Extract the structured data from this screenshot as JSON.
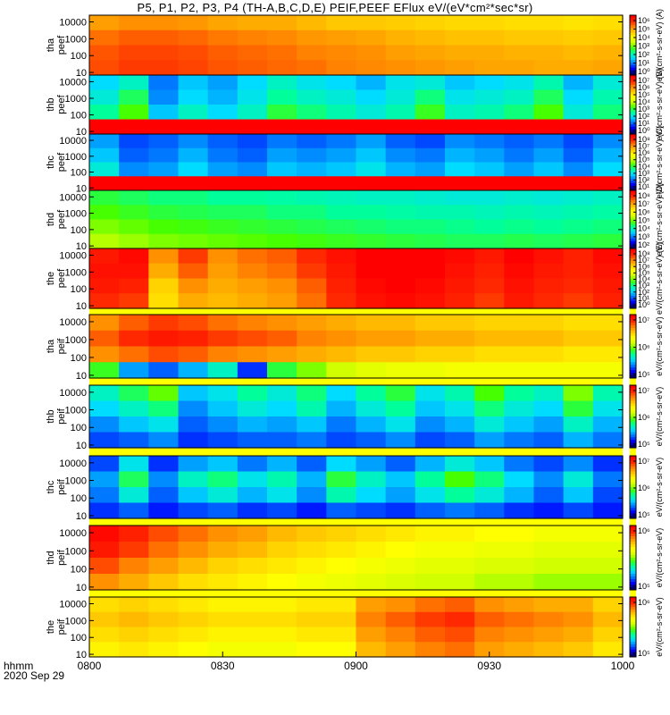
{
  "title": "P5, P1, P2, P3, P4 (TH-A,B,C,D,E) PEIF,PEEF EFlux eV/(eV*cm²*sec*sr)",
  "footer": {
    "row1": "hhmm",
    "row2": "2020 Sep 29"
  },
  "colors": {
    "frame": "#000000",
    "separator": "#ffff00"
  },
  "chart_data": {
    "type": "heatmap",
    "x_ticks": [
      "0800",
      "0830",
      "0900",
      "0930",
      "1000"
    ],
    "xlim": [
      "0800",
      "1000"
    ],
    "n_time_bins": 18,
    "y_scale": "log",
    "ylim": [
      7,
      25000
    ],
    "y_ticks": [
      "10",
      "100",
      "1000",
      "10000"
    ],
    "colorscale": [
      "#000066",
      "#0000ff",
      "#0078ff",
      "#00dcff",
      "#00ff9a",
      "#46ff00",
      "#d2ff00",
      "#ffff00",
      "#ffc800",
      "#ff8200",
      "#ff2800",
      "#ff0000"
    ],
    "panels": [
      {
        "name": "tha peef",
        "label_top": "tha",
        "label_bottom": "peef",
        "colorbar_ticks": [
          "10⁶",
          "10⁵",
          "10⁴",
          "10³",
          "10²",
          "10¹",
          "10⁰"
        ],
        "colorbar_label": "eV/(cm²-s-sr-eV) (A)",
        "levels": [
          [
            8.6,
            8.8,
            8.8,
            8.7,
            8.5,
            8.4,
            8.4,
            8.2,
            8.0,
            8.0,
            7.9,
            7.8,
            7.7,
            7.7,
            7.6,
            7.6,
            7.5,
            7.6
          ],
          [
            9.2,
            9.4,
            9.4,
            9.3,
            9.1,
            9.0,
            8.9,
            8.7,
            8.6,
            8.5,
            8.3,
            8.2,
            8.1,
            8.1,
            8.0,
            8.0,
            7.9,
            8.0
          ],
          [
            9.5,
            9.7,
            9.7,
            9.6,
            9.4,
            9.3,
            9.2,
            9.0,
            8.9,
            8.8,
            8.6,
            8.5,
            8.4,
            8.4,
            8.3,
            8.3,
            8.2,
            8.3
          ],
          [
            9.6,
            9.8,
            9.8,
            9.7,
            9.5,
            9.4,
            9.3,
            9.2,
            9.0,
            8.9,
            8.8,
            8.7,
            8.6,
            8.5,
            8.5,
            8.4,
            8.4,
            8.5
          ]
        ]
      },
      {
        "name": "thb peef",
        "label_top": "thb",
        "label_bottom": "peef",
        "colorbar_ticks": [
          "10⁷",
          "10⁶",
          "10⁵",
          "10⁴",
          "10³",
          "10²",
          "10¹",
          "10⁰"
        ],
        "colorbar_label": "eV/(cm²-s-sr-eV) (B)",
        "levels": [
          [
            3.0,
            3.6,
            2.0,
            2.8,
            2.4,
            3.0,
            3.6,
            3.2,
            3.0,
            2.6,
            3.2,
            3.4,
            2.8,
            3.0,
            3.2,
            3.8,
            2.6,
            3.4
          ],
          [
            3.4,
            4.4,
            2.2,
            3.0,
            2.6,
            3.2,
            4.0,
            3.6,
            3.4,
            3.0,
            3.4,
            4.2,
            3.2,
            3.4,
            3.6,
            4.4,
            3.0,
            3.8
          ],
          [
            4.0,
            5.0,
            2.8,
            3.6,
            3.0,
            3.6,
            4.6,
            4.2,
            3.8,
            3.4,
            3.8,
            4.8,
            3.6,
            3.8,
            4.2,
            5.0,
            3.4,
            4.2
          ],
          [
            11.5,
            11.6,
            11.5,
            11.6,
            11.5,
            11.5,
            11.6,
            11.5,
            11.6,
            11.5,
            11.5,
            11.6,
            11.5,
            11.5,
            11.6,
            11.5,
            11.5,
            11.6
          ]
        ]
      },
      {
        "name": "thc peef",
        "label_top": "thc",
        "label_bottom": "peef",
        "colorbar_ticks": [
          "10⁸",
          "10⁷",
          "10⁶",
          "10⁵",
          "10⁴",
          "10³",
          "10²",
          "10¹"
        ],
        "colorbar_label": "eV/(cm²-s-sr-eV) (C)",
        "levels": [
          [
            2.4,
            1.6,
            1.8,
            2.2,
            1.8,
            1.6,
            2.0,
            1.8,
            2.0,
            2.4,
            1.8,
            1.6,
            2.2,
            2.0,
            1.8,
            2.0,
            1.6,
            2.2
          ],
          [
            2.8,
            1.8,
            2.0,
            2.6,
            2.0,
            1.8,
            2.4,
            2.2,
            2.4,
            2.8,
            2.2,
            2.0,
            2.6,
            2.4,
            2.0,
            2.4,
            1.8,
            2.6
          ],
          [
            3.4,
            2.2,
            2.4,
            3.0,
            2.4,
            2.2,
            2.8,
            2.6,
            2.8,
            3.2,
            2.6,
            2.4,
            3.0,
            2.8,
            2.4,
            2.8,
            2.2,
            3.0
          ],
          [
            11.5,
            11.6,
            11.5,
            11.6,
            11.5,
            11.5,
            11.6,
            11.5,
            11.6,
            11.5,
            11.5,
            11.6,
            11.5,
            11.5,
            11.6,
            11.5,
            11.5,
            11.6
          ]
        ]
      },
      {
        "name": "thd peef",
        "label_top": "thd",
        "label_bottom": "peef",
        "colorbar_ticks": [
          "10⁸",
          "10⁷",
          "10⁶",
          "10⁵",
          "10⁴",
          "10³",
          "10²"
        ],
        "colorbar_label": "eV/(cm²-s-sr-eV) (D)",
        "levels": [
          [
            4.6,
            4.4,
            4.2,
            4.2,
            4.0,
            4.0,
            3.9,
            3.8,
            3.7,
            3.6,
            3.6,
            3.5,
            3.4,
            3.4,
            3.5,
            3.4,
            3.5,
            3.6
          ],
          [
            5.0,
            4.8,
            4.6,
            4.5,
            4.4,
            4.4,
            4.2,
            4.2,
            4.0,
            4.0,
            3.9,
            3.8,
            3.8,
            3.7,
            3.8,
            3.7,
            3.8,
            3.9
          ],
          [
            5.4,
            5.2,
            5.0,
            4.9,
            4.8,
            4.7,
            4.6,
            4.5,
            4.4,
            4.3,
            4.2,
            4.2,
            4.1,
            4.0,
            4.1,
            4.0,
            4.1,
            4.2
          ],
          [
            5.8,
            5.6,
            5.4,
            5.3,
            5.2,
            5.1,
            5.0,
            4.9,
            4.8,
            4.7,
            4.6,
            4.5,
            4.4,
            4.4,
            4.5,
            4.4,
            4.5,
            4.6
          ]
        ]
      },
      {
        "name": "the peef",
        "label_top": "the",
        "label_bottom": "peef",
        "colorbar_ticks": [
          "10⁸",
          "10⁷",
          "10⁶",
          "10⁵",
          "10⁴",
          "10³",
          "10²",
          "10¹",
          "10⁰"
        ],
        "colorbar_label": "eV/(cm²-s-sr-eV) (E)",
        "levels": [
          [
            10.4,
            10.8,
            8.8,
            9.8,
            8.8,
            9.2,
            9.4,
            10.0,
            10.6,
            11.0,
            11.2,
            11.1,
            10.8,
            10.4,
            11.0,
            10.6,
            10.2,
            10.8
          ],
          [
            10.6,
            10.6,
            8.4,
            9.4,
            8.6,
            9.0,
            9.2,
            9.8,
            10.4,
            11.0,
            11.2,
            11.0,
            10.6,
            10.2,
            10.8,
            10.4,
            10.2,
            10.6
          ],
          [
            10.4,
            10.2,
            7.8,
            8.8,
            8.4,
            8.6,
            8.8,
            9.4,
            10.2,
            10.8,
            11.0,
            10.8,
            10.4,
            10.0,
            10.6,
            10.2,
            10.0,
            10.4
          ],
          [
            10.0,
            9.8,
            7.6,
            8.4,
            8.2,
            8.4,
            8.6,
            9.2,
            10.0,
            10.6,
            10.8,
            10.6,
            10.2,
            9.8,
            10.4,
            10.0,
            9.8,
            10.2
          ]
        ]
      },
      {
        "name": "tha peif",
        "label_top": "tha",
        "label_bottom": "peif",
        "colorbar_ticks": [
          "10⁷",
          "10⁶",
          "10⁵"
        ],
        "colorbar_label": "eV/(cm²-s-sr-eV)",
        "levels": [
          [
            8.8,
            9.4,
            9.8,
            9.6,
            9.2,
            9.0,
            8.8,
            8.6,
            8.4,
            8.2,
            8.2,
            8.0,
            8.0,
            7.8,
            7.8,
            7.8,
            7.6,
            7.6
          ],
          [
            9.4,
            10.0,
            10.4,
            10.2,
            9.8,
            9.6,
            9.4,
            9.0,
            8.8,
            8.6,
            8.6,
            8.4,
            8.4,
            8.2,
            8.2,
            8.2,
            8.0,
            8.0
          ],
          [
            8.8,
            9.2,
            9.6,
            9.4,
            9.0,
            8.8,
            8.6,
            8.4,
            8.2,
            8.0,
            8.0,
            7.8,
            7.8,
            7.6,
            7.6,
            7.6,
            7.4,
            7.4
          ],
          [
            4.8,
            2.4,
            1.8,
            2.6,
            3.6,
            1.4,
            4.6,
            5.4,
            6.0,
            6.4,
            6.6,
            6.6,
            6.8,
            6.8,
            6.8,
            6.8,
            6.8,
            6.8
          ]
        ]
      },
      {
        "name": "thb peif",
        "label_top": "thb",
        "label_bottom": "peif",
        "colorbar_ticks": [
          "10⁷",
          "10⁶",
          "10⁵"
        ],
        "colorbar_label": "eV/(cm²-s-sr-eV)",
        "levels": [
          [
            3.6,
            4.4,
            5.2,
            2.8,
            3.2,
            4.0,
            3.4,
            4.2,
            3.0,
            4.0,
            4.6,
            3.2,
            3.8,
            5.0,
            4.0,
            3.6,
            5.4,
            3.8
          ],
          [
            3.0,
            3.6,
            4.2,
            2.2,
            2.8,
            3.4,
            3.0,
            3.8,
            2.6,
            3.4,
            4.0,
            2.8,
            3.2,
            4.2,
            3.4,
            3.0,
            4.6,
            3.2
          ],
          [
            2.2,
            2.8,
            3.2,
            1.8,
            2.2,
            2.6,
            2.4,
            2.8,
            2.0,
            2.6,
            3.2,
            2.2,
            2.6,
            3.4,
            2.8,
            2.4,
            3.6,
            2.6
          ],
          [
            1.6,
            1.8,
            2.2,
            1.4,
            1.6,
            1.8,
            1.8,
            2.0,
            1.6,
            1.8,
            2.2,
            1.6,
            1.8,
            2.4,
            2.0,
            1.8,
            2.6,
            2.0
          ]
        ]
      },
      {
        "name": "thc peif",
        "label_top": "thc",
        "label_bottom": "peif",
        "colorbar_ticks": [
          "10⁷",
          "10⁶",
          "10⁵"
        ],
        "colorbar_label": "eV/(cm²-s-sr-eV)",
        "levels": [
          [
            1.6,
            3.2,
            1.4,
            2.4,
            2.8,
            2.0,
            2.6,
            1.8,
            3.0,
            2.4,
            1.8,
            2.6,
            3.4,
            2.8,
            2.0,
            1.6,
            2.2,
            1.4
          ],
          [
            2.4,
            4.4,
            2.2,
            3.6,
            4.2,
            3.2,
            3.8,
            2.6,
            4.6,
            3.6,
            2.8,
            4.0,
            5.0,
            4.2,
            3.0,
            2.2,
            3.4,
            2.0
          ],
          [
            2.0,
            3.4,
            1.8,
            2.8,
            3.4,
            2.6,
            3.2,
            2.2,
            3.8,
            3.0,
            2.4,
            3.2,
            4.0,
            3.4,
            2.6,
            1.8,
            2.8,
            1.6
          ],
          [
            1.4,
            1.8,
            1.2,
            1.6,
            1.8,
            1.4,
            1.6,
            1.2,
            1.8,
            1.6,
            1.4,
            1.8,
            2.0,
            1.8,
            1.4,
            1.2,
            1.6,
            1.2
          ]
        ]
      },
      {
        "name": "thd peif",
        "label_top": "thd",
        "label_bottom": "peif",
        "colorbar_ticks": [
          "10⁶",
          "10⁵"
        ],
        "colorbar_label": "eV/(cm²-s-sr-eV)",
        "levels": [
          [
            10.8,
            10.2,
            9.6,
            9.2,
            8.8,
            8.6,
            8.2,
            8.0,
            7.8,
            7.6,
            7.4,
            7.2,
            7.2,
            7.0,
            7.0,
            6.8,
            6.8,
            6.8
          ],
          [
            10.4,
            9.8,
            9.2,
            8.8,
            8.4,
            8.2,
            7.8,
            7.6,
            7.4,
            7.2,
            7.0,
            6.8,
            6.8,
            6.6,
            6.6,
            6.4,
            6.4,
            6.4
          ],
          [
            9.6,
            9.0,
            8.6,
            8.2,
            7.8,
            7.6,
            7.4,
            7.2,
            7.0,
            6.8,
            6.6,
            6.4,
            6.4,
            6.2,
            6.2,
            6.0,
            6.0,
            6.0
          ],
          [
            8.8,
            8.4,
            8.0,
            7.6,
            7.4,
            7.2,
            7.0,
            6.8,
            6.6,
            6.4,
            6.2,
            6.0,
            6.0,
            5.8,
            5.8,
            5.6,
            5.6,
            5.6
          ]
        ]
      },
      {
        "name": "the peif",
        "label_top": "the",
        "label_bottom": "peif",
        "colorbar_ticks": [
          "10⁶",
          "10⁵"
        ],
        "colorbar_label": "eV/(cm²-s-sr-eV)",
        "levels": [
          [
            7.6,
            7.8,
            7.6,
            7.4,
            7.2,
            7.2,
            7.2,
            7.4,
            7.4,
            8.6,
            8.8,
            9.2,
            9.4,
            8.8,
            8.6,
            8.4,
            8.4,
            7.8
          ],
          [
            8.0,
            8.2,
            8.0,
            7.8,
            7.6,
            7.6,
            7.6,
            7.8,
            7.8,
            9.0,
            9.4,
            9.8,
            10.0,
            9.4,
            9.2,
            9.0,
            8.8,
            8.2
          ],
          [
            7.6,
            7.8,
            7.6,
            7.4,
            7.2,
            7.2,
            7.2,
            7.4,
            7.4,
            8.6,
            9.0,
            9.4,
            9.6,
            9.0,
            8.8,
            8.6,
            8.4,
            7.8
          ],
          [
            7.2,
            7.4,
            7.2,
            7.0,
            6.8,
            6.8,
            6.8,
            7.0,
            7.0,
            8.2,
            8.6,
            9.0,
            9.2,
            8.6,
            8.4,
            8.2,
            8.0,
            7.4
          ]
        ]
      }
    ]
  }
}
